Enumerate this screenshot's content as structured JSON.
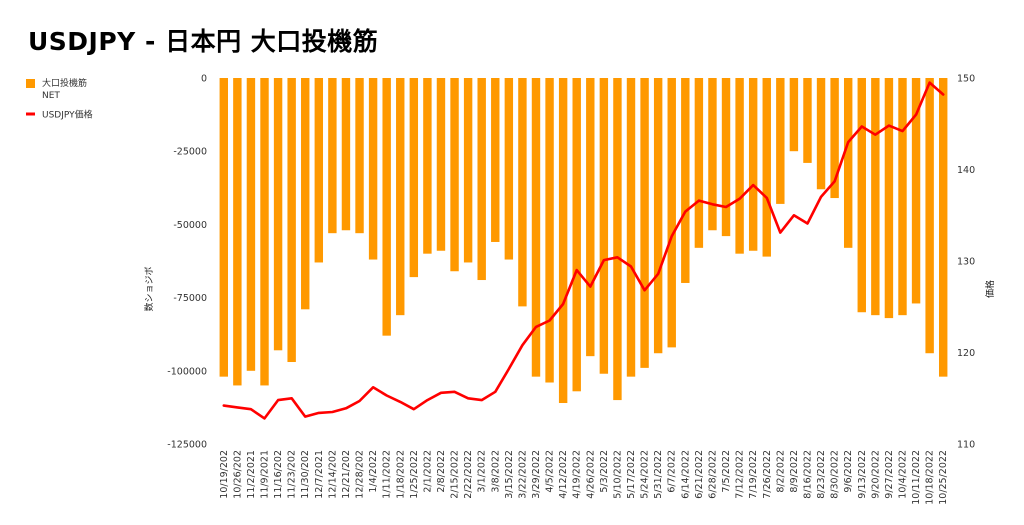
{
  "chart_data": {
    "type": "bar+line",
    "title": "USDJPY - 日本円 大口投機筋",
    "ylabel_left": "数ショジボ",
    "ylabel_right": "価格",
    "ylim_left": [
      -125000,
      0
    ],
    "ylim_right": [
      110,
      150
    ],
    "yticks_left": [
      "0",
      "-25000",
      "-50000",
      "-75000",
      "-100000",
      "-125000"
    ],
    "yticks_right": [
      "150",
      "140",
      "130",
      "120",
      "110"
    ],
    "legend_position": "left",
    "categories": [
      "10/19/202",
      "10/26/202",
      "11/2/2021",
      "11/9/2021",
      "11/16/202",
      "11/23/202",
      "11/30/202",
      "12/7/2021",
      "12/14/202",
      "12/21/202",
      "12/28/202",
      "1/4/2022",
      "1/11/2022",
      "1/18/2022",
      "1/25/2022",
      "2/1/2022",
      "2/8/2022",
      "2/15/2022",
      "2/22/2022",
      "3/1/2022",
      "3/8/2022",
      "3/15/2022",
      "3/22/2022",
      "3/29/2022",
      "4/5/2022",
      "4/12/2022",
      "4/19/2022",
      "4/26/2022",
      "5/3/2022",
      "5/10/2022",
      "5/17/2022",
      "5/24/2022",
      "5/31/2022",
      "6/7/2022",
      "6/14/2022",
      "6/21/2022",
      "6/28/2022",
      "7/5/2022",
      "7/12/2022",
      "7/19/2022",
      "7/26/2022",
      "8/2/2022",
      "8/9/2022",
      "8/16/2022",
      "8/23/2022",
      "8/30/2022",
      "9/6/2022",
      "9/13/2022",
      "9/20/2022",
      "9/27/2022",
      "10/4/2022",
      "10/11/2022",
      "10/18/2022",
      "10/25/2022"
    ],
    "series": [
      {
        "name": "大口投機筋\nNET",
        "kind": "bar",
        "axis": "left",
        "color": "#ff9900",
        "values": [
          -102000,
          -105000,
          -100000,
          -105000,
          -93000,
          -97000,
          -79000,
          -63000,
          -53000,
          -52000,
          -53000,
          -62000,
          -88000,
          -81000,
          -68000,
          -60000,
          -59000,
          -66000,
          -63000,
          -69000,
          -56000,
          -62000,
          -78000,
          -102000,
          -104000,
          -111000,
          -107000,
          -95000,
          -101000,
          -110000,
          -102000,
          -99000,
          -94000,
          -92000,
          -70000,
          -58000,
          -52000,
          -54000,
          -60000,
          -59000,
          -61000,
          -43000,
          -25000,
          -29000,
          -38000,
          -41000,
          -58000,
          -80000,
          -81000,
          -82000,
          -81000,
          -77000,
          -94000,
          -102000
        ]
      },
      {
        "name": "USDJPY価格",
        "kind": "line",
        "axis": "right",
        "color": "#ff0000",
        "values": [
          114.2,
          114.0,
          113.8,
          112.8,
          114.8,
          115.0,
          113.0,
          113.4,
          113.5,
          113.9,
          114.7,
          116.2,
          115.3,
          114.6,
          113.8,
          114.8,
          115.6,
          115.7,
          115.0,
          114.8,
          115.7,
          118.2,
          120.8,
          122.8,
          123.5,
          125.3,
          129.0,
          127.2,
          130.1,
          130.4,
          129.4,
          126.8,
          128.6,
          132.7,
          135.4,
          136.6,
          136.2,
          135.9,
          136.8,
          138.3,
          136.9,
          133.1,
          135.0,
          134.1,
          137.0,
          138.7,
          143.0,
          144.7,
          143.8,
          144.8,
          144.2,
          146.0,
          149.5,
          148.2
        ]
      }
    ]
  }
}
